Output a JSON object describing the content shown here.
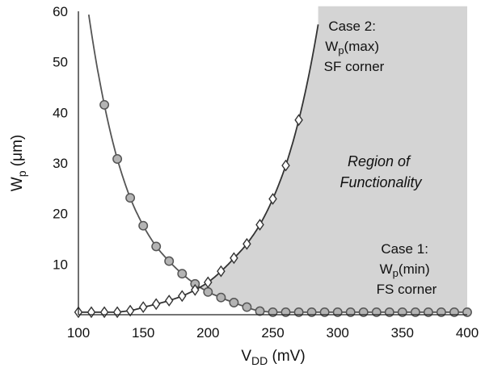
{
  "chart_data": {
    "type": "line",
    "xlabel": "V",
    "xlabel_sub": "DD",
    "xlabel_unit": "(mV)",
    "ylabel": "W",
    "ylabel_sub": "p",
    "ylabel_unit": "(μm)",
    "xlim": [
      100,
      400
    ],
    "ylim": [
      0,
      60
    ],
    "xticks": [
      100,
      150,
      200,
      250,
      300,
      350,
      400
    ],
    "yticks": [
      10,
      20,
      30,
      40,
      50,
      60
    ],
    "grid": false,
    "shaded_region": {
      "label_line1": "Region of",
      "label_line2": "Functionality",
      "color": "#d4d4d4"
    },
    "series": [
      {
        "marker": "circle",
        "color": "#555555",
        "x": [
          120,
          130,
          140,
          150,
          160,
          170,
          180,
          190,
          200,
          210,
          220,
          230,
          240,
          250,
          260,
          270,
          280,
          290,
          300,
          310,
          320,
          330,
          340,
          350,
          360,
          370,
          380,
          390,
          400
        ],
        "y": [
          41.5,
          30.8,
          23.1,
          17.6,
          13.5,
          10.6,
          8.1,
          6.1,
          4.5,
          3.4,
          2.4,
          1.5,
          0.7,
          0.5,
          0.5,
          0.5,
          0.5,
          0.5,
          0.5,
          0.5,
          0.5,
          0.5,
          0.5,
          0.5,
          0.5,
          0.5,
          0.5,
          0.5,
          0.5
        ]
      },
      {
        "marker": "diamond",
        "color": "#333333",
        "x": [
          100,
          110,
          120,
          130,
          140,
          150,
          160,
          170,
          180,
          190,
          200,
          210,
          220,
          230,
          240,
          250,
          260,
          270
        ],
        "y": [
          0.5,
          0.5,
          0.5,
          0.5,
          0.8,
          1.5,
          2.1,
          2.8,
          3.7,
          4.9,
          6.4,
          8.6,
          11.2,
          14.0,
          17.8,
          22.9,
          29.5,
          38.5
        ]
      }
    ],
    "annotations": [
      {
        "id": "case2",
        "lines": [
          "Case 2:",
          "W",
          "(max)",
          "SF corner"
        ],
        "sub": "p"
      },
      {
        "id": "case1",
        "lines": [
          "Case 1:",
          "W",
          "(min)",
          "FS corner"
        ],
        "sub": "p"
      }
    ]
  }
}
